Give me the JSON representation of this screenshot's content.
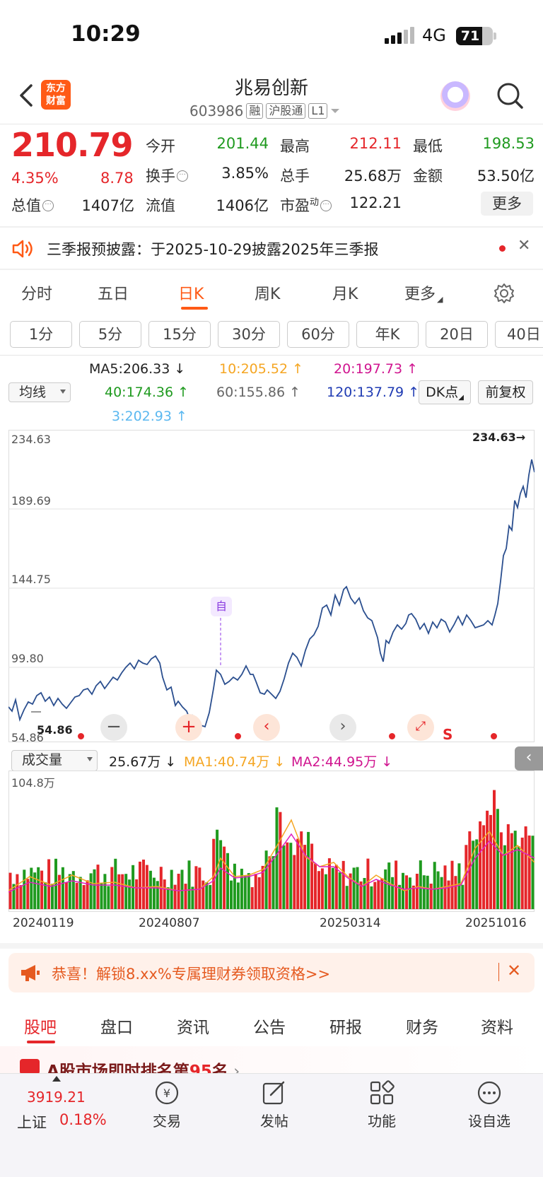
{
  "status": {
    "time": "10:29",
    "network": "4G",
    "battery": "71"
  },
  "header": {
    "logo_line1": "东方",
    "logo_line2": "财富",
    "name": "兆易创新",
    "code": "603986",
    "tags": [
      "融",
      "沪股通",
      "L1"
    ]
  },
  "quote": {
    "price": "210.79",
    "pct": "4.35%",
    "change": "8.78",
    "open_label": "今开",
    "open": "201.44",
    "high_label": "最高",
    "high": "212.11",
    "low_label": "最低",
    "low": "198.53",
    "turnover_label": "换手",
    "turnover": "3.85%",
    "volume_label": "总手",
    "volume": "25.68万",
    "amount_label": "金额",
    "amount": "53.50亿",
    "mktcap_label": "总值",
    "mktcap": "1407亿",
    "float_label": "流值",
    "float": "1406亿",
    "pe_label": "市盈",
    "pe_sup": "动",
    "pe": "122.21",
    "more": "更多"
  },
  "notice": {
    "text": "三季报预披露：于2025-10-29披露2025年三季报"
  },
  "period_tabs": [
    {
      "label": "分时"
    },
    {
      "label": "五日"
    },
    {
      "label": "日K"
    },
    {
      "label": "周K"
    },
    {
      "label": "月K"
    },
    {
      "label": "更多"
    }
  ],
  "minute_tabs": [
    "1分",
    "5分",
    "15分",
    "30分",
    "60分",
    "年K",
    "20日",
    "40日"
  ],
  "ma": {
    "select_label": "均线",
    "ma5": "MA5:206.33 ↓",
    "ma10": "10:205.52 ↑",
    "ma20": "20:197.73 ↑",
    "ma40": "40:174.36 ↑",
    "ma60": "60:155.86 ↑",
    "ma120": "120:137.79 ↑",
    "ma3": "3:202.93 ↑",
    "dk_label": "DK点",
    "fq_label": "前复权"
  },
  "price_axis": {
    "top": "234.63",
    "l2": "189.69",
    "l3": "144.75",
    "l4": "99.80",
    "bottom": "54.86",
    "max_marker": "234.63→",
    "min_marker": "54.86",
    "self_marker": "自",
    "s_marker": "S"
  },
  "volume": {
    "select_label": "成交量",
    "current": "25.67万 ↓",
    "ma1": "MA1:40.74万 ↓",
    "ma2": "MA2:44.95万 ↓",
    "axis_top": "104.8万"
  },
  "dates": [
    "20240119",
    "20240807",
    "20250314",
    "20251016"
  ],
  "promo": {
    "text": "恭喜！解锁8.xx%专属理财券领取资格>>"
  },
  "bottom_tabs": [
    "股吧",
    "盘口",
    "资讯",
    "公告",
    "研报",
    "财务",
    "资料"
  ],
  "teaser": {
    "prefix": "A股市场即时排名第",
    "rank": "95",
    "suffix": "名"
  },
  "dock": {
    "index_value": "3919.21",
    "index_name": "上证",
    "index_pct": "0.18%",
    "items": [
      "交易",
      "发帖",
      "功能",
      "设自选"
    ]
  },
  "colors": {
    "up": "#e5262a",
    "down": "#1f9a1f",
    "accent": "#ff5a16",
    "line": "#2b4f8f"
  }
}
